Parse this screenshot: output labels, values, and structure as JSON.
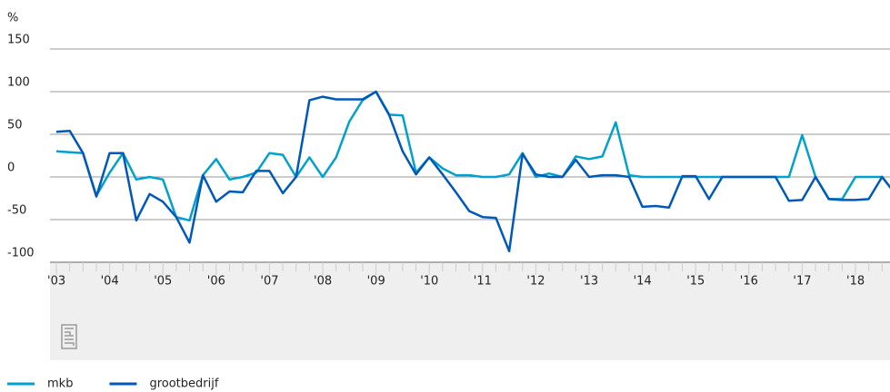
{
  "chart_data": {
    "type": "line",
    "y_label": "%",
    "categories": [
      "'03",
      null,
      null,
      null,
      "'04",
      null,
      null,
      null,
      "'05",
      null,
      null,
      null,
      "'06",
      null,
      null,
      null,
      "'07",
      null,
      null,
      null,
      "'08",
      null,
      null,
      null,
      "'09",
      null,
      null,
      null,
      "'10",
      null,
      null,
      null,
      "'11",
      null,
      null,
      null,
      "'12",
      null,
      null,
      null,
      "'13",
      null,
      null,
      null,
      "'14",
      null,
      null,
      null,
      "'15",
      null,
      null,
      null,
      "'16",
      null,
      null,
      null,
      "'17",
      null,
      null,
      null,
      "'18",
      null,
      null,
      null
    ],
    "series": [
      {
        "name": "mkb",
        "color": "#00a1cd",
        "values": [
          30,
          29,
          28,
          -22,
          5,
          28,
          -3,
          0,
          -3,
          -47,
          -51,
          2,
          21,
          -3,
          0,
          5,
          28,
          26,
          0,
          23,
          0,
          23,
          65,
          90,
          100,
          73,
          72,
          5,
          23,
          10,
          2,
          2,
          0,
          0,
          3,
          28,
          0,
          4,
          0,
          24,
          21,
          24,
          64,
          2,
          0,
          0,
          0,
          0,
          0,
          0,
          0,
          0,
          0,
          0,
          0,
          0,
          49,
          0,
          -26,
          -26,
          0,
          0,
          0,
          -20
        ]
      },
      {
        "name": "grootbedrijf",
        "color": "#0058b8",
        "values": [
          53,
          54,
          28,
          -23,
          28,
          28,
          -51,
          -20,
          -29,
          -47,
          -77,
          2,
          -29,
          -17,
          -18,
          7,
          7,
          -19,
          0,
          90,
          94,
          91,
          91,
          91,
          100,
          72,
          30,
          3,
          23,
          3,
          -18,
          -40,
          -47,
          -48,
          -87,
          27,
          3,
          0,
          0,
          20,
          0,
          2,
          2,
          0,
          -35,
          -34,
          -36,
          1,
          1,
          -26,
          0,
          0,
          0,
          0,
          0,
          -28,
          -27,
          0,
          -26,
          -27,
          -27,
          -26,
          0,
          -20
        ]
      }
    ],
    "ylim": [
      -100,
      150
    ],
    "yticks": [
      -100,
      -50,
      0,
      50,
      100,
      150
    ],
    "grid": true
  }
}
